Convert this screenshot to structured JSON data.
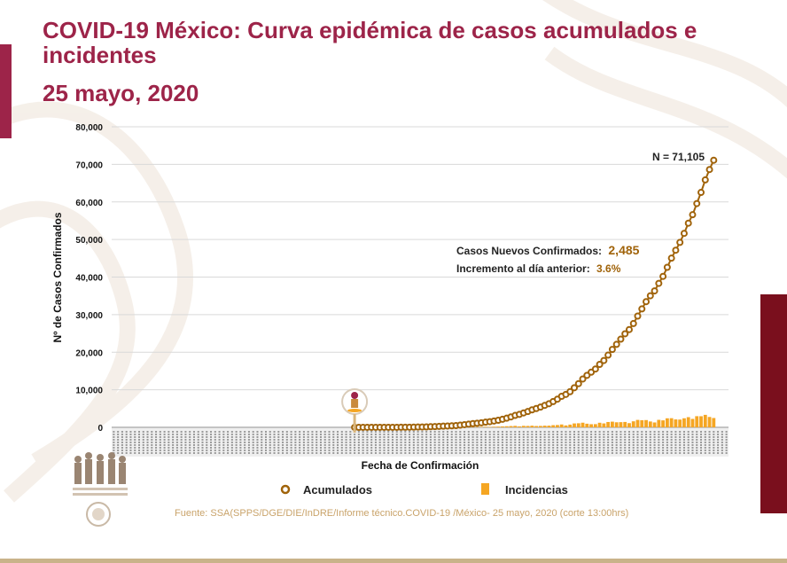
{
  "header": {
    "title": "COVID-19 México: Curva epidémica de casos acumulados e incidentes",
    "date": "25 mayo, 2020"
  },
  "colors": {
    "brand": "#9d2449",
    "accumulated": "#a0630a",
    "incidents": "#f5a623",
    "source_text": "#c9a36a"
  },
  "icons": [
    "first-case-icon",
    "government-logo",
    "mexico-seal"
  ],
  "footer": {
    "source": "Fuente: SSA(SPPS/DGE/DIE/InDRE/Informe técnico.COVID-19 /México- 25 mayo, 2020 (corte 13:00hrs)"
  },
  "chart_data": {
    "type": "line",
    "title": "",
    "xlabel": "Fecha de Confirmación",
    "ylabel": "Nº de Casos Confirmados",
    "ylim": [
      0,
      80000
    ],
    "yticks": [
      "0",
      "10,000",
      "20,000",
      "30,000",
      "40,000",
      "50,000",
      "60,000",
      "70,000",
      "80,000"
    ],
    "grid": true,
    "legend_position": "bottom",
    "x_range": [
      "2020-01-01",
      "2020-05-25"
    ],
    "accumulated_start": "2020-02-27",
    "first_case_date": "2020-02-27",
    "annotations": {
      "total": "N = 71,105",
      "new_cases_label": "Casos Nuevos Confirmados:",
      "new_cases_value": "2,485",
      "increment_label": "Incremento al día anterior:",
      "increment_value": "3.6%"
    },
    "series": [
      {
        "name": "Acumulados",
        "type": "line",
        "values": [
          1,
          2,
          4,
          5,
          5,
          5,
          7,
          7,
          7,
          7,
          12,
          15,
          26,
          41,
          53,
          82,
          93,
          118,
          164,
          203,
          251,
          316,
          367,
          405,
          475,
          585,
          717,
          848,
          993,
          1094,
          1215,
          1378,
          1510,
          1688,
          1890,
          2143,
          2439,
          2785,
          3181,
          3441,
          3844,
          4219,
          4661,
          5014,
          5399,
          5847,
          6297,
          6875,
          7497,
          8261,
          8772,
          9501,
          10544,
          11633,
          12872,
          13842,
          14677,
          15529,
          16752,
          17799,
          19224,
          20739,
          22088,
          23471,
          24905,
          26025,
          27634,
          29616,
          31522,
          33460,
          35022,
          36327,
          38324,
          40186,
          42595,
          45032,
          47144,
          49219,
          51633,
          54346,
          56594,
          59567,
          62527,
          65856,
          68620,
          71105
        ]
      },
      {
        "name": "Incidencias",
        "type": "bar",
        "values": [
          1,
          1,
          2,
          1,
          0,
          0,
          2,
          0,
          0,
          0,
          5,
          3,
          11,
          15,
          12,
          29,
          11,
          25,
          46,
          39,
          48,
          65,
          51,
          38,
          70,
          110,
          132,
          131,
          145,
          101,
          121,
          163,
          132,
          178,
          202,
          253,
          296,
          346,
          396,
          260,
          403,
          375,
          442,
          353,
          385,
          448,
          450,
          578,
          622,
          764,
          511,
          729,
          1043,
          1089,
          1239,
          970,
          835,
          852,
          1223,
          1047,
          1425,
          1515,
          1349,
          1383,
          1434,
          1120,
          1609,
          1982,
          1906,
          1938,
          1562,
          1305,
          1997,
          1862,
          2409,
          2437,
          2112,
          2075,
          2414,
          2713,
          2248,
          2973,
          2960,
          3329,
          2764,
          2485
        ]
      }
    ]
  }
}
